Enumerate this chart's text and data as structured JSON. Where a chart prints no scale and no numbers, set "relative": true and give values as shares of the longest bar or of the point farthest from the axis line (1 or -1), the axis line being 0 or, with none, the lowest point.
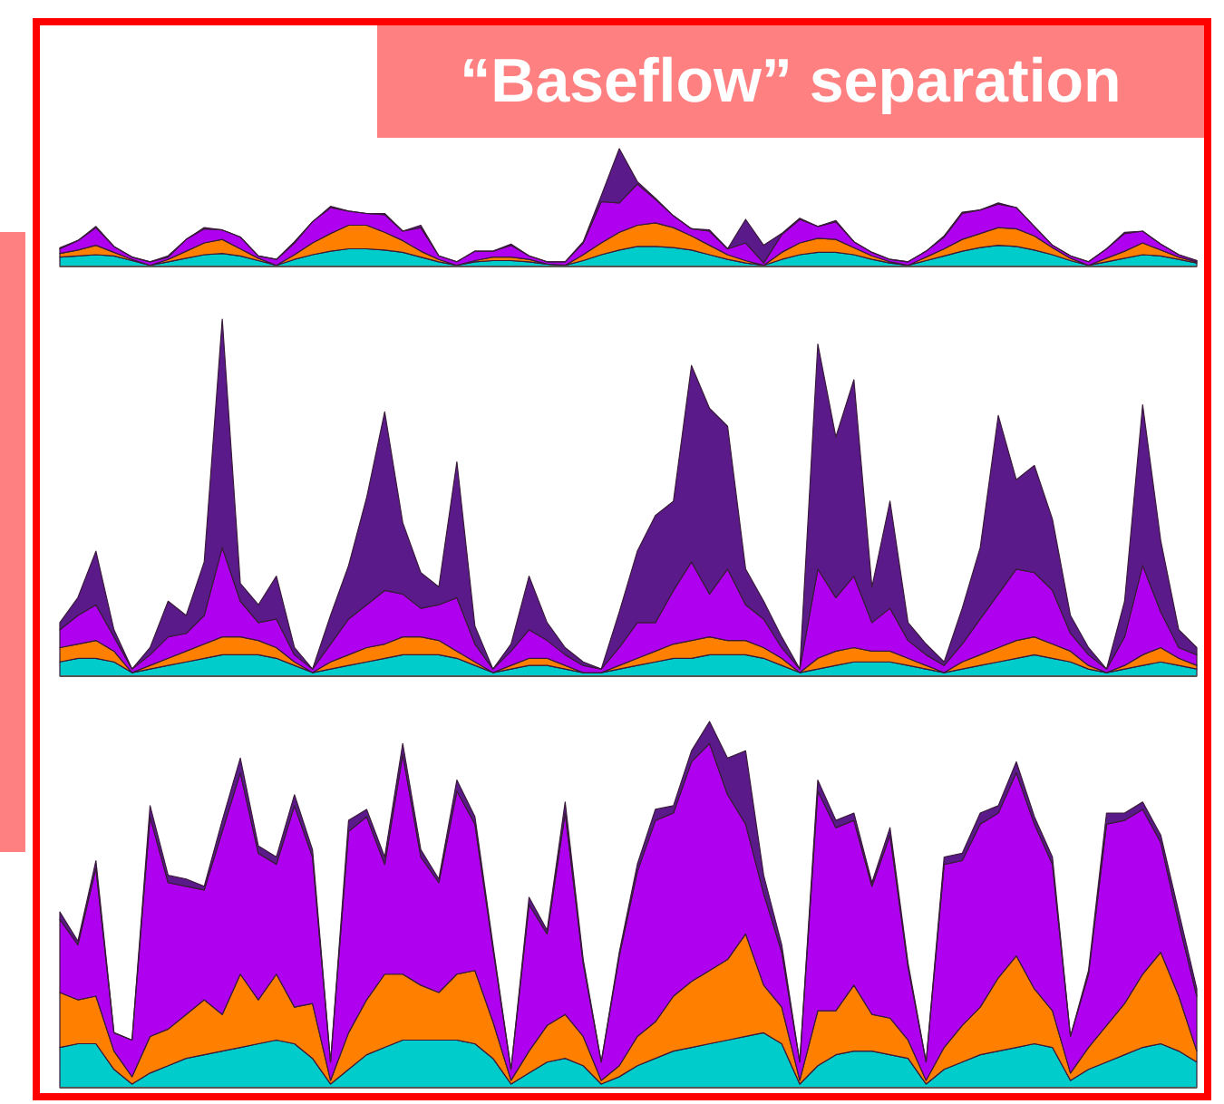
{
  "chart_data": [
    {
      "type": "area",
      "title": "“Baseflow” separation",
      "relative": true,
      "stacked": true,
      "categories": [
        null,
        null,
        null,
        null,
        null,
        null,
        null,
        null,
        null,
        null,
        null,
        null,
        null,
        null,
        null,
        null,
        null,
        null,
        null,
        null,
        null,
        null,
        null,
        null,
        null,
        null,
        null,
        null,
        null,
        null,
        null,
        null,
        null,
        null,
        null,
        null,
        null,
        null,
        null,
        null,
        null,
        null,
        null,
        null,
        null,
        null,
        null,
        null,
        null,
        null,
        null,
        null,
        null,
        null,
        null,
        null,
        null,
        null,
        null,
        null,
        null,
        null,
        null,
        null
      ],
      "series": [
        {
          "color": "#00cccc",
          "values": [
            0.08,
            0.09,
            0.1,
            0.09,
            0.05,
            0.01,
            0.04,
            0.07,
            0.1,
            0.11,
            0.09,
            0.05,
            0.01,
            0.06,
            0.1,
            0.13,
            0.15,
            0.15,
            0.14,
            0.12,
            0.08,
            0.04,
            0.01,
            0.04,
            0.05,
            0.05,
            0.04,
            0.02,
            0.01,
            0.05,
            0.1,
            0.14,
            0.17,
            0.17,
            0.16,
            0.14,
            0.1,
            0.06,
            0.03,
            0.01,
            0.06,
            0.1,
            0.12,
            0.12,
            0.1,
            0.06,
            0.03,
            0.01,
            0.05,
            0.09,
            0.13,
            0.16,
            0.18,
            0.17,
            0.14,
            0.1,
            0.05,
            0.01,
            0.04,
            0.07,
            0.1,
            0.09,
            0.06,
            0.03
          ]
        },
        {
          "color": "#ff8000",
          "values": [
            0.03,
            0.05,
            0.08,
            0.03,
            0.01,
            0,
            0.02,
            0.06,
            0.1,
            0.12,
            0.06,
            0.02,
            0,
            0.04,
            0.1,
            0.15,
            0.2,
            0.2,
            0.15,
            0.1,
            0.05,
            0.02,
            0,
            0.01,
            0.03,
            0.03,
            0.02,
            0,
            0,
            0.05,
            0.1,
            0.15,
            0.18,
            0.2,
            0.17,
            0.12,
            0.08,
            0.04,
            0.02,
            0,
            0.06,
            0.1,
            0.12,
            0.11,
            0.06,
            0.03,
            0.01,
            0,
            0.03,
            0.06,
            0.1,
            0.12,
            0.15,
            0.15,
            0.12,
            0.06,
            0.02,
            0,
            0.03,
            0.06,
            0.1,
            0.05,
            0.02,
            0.01
          ]
        },
        {
          "color": "#b000f0",
          "values": [
            0.04,
            0.08,
            0.15,
            0.05,
            0.02,
            0.03,
            0.02,
            0.1,
            0.12,
            0.08,
            0.1,
            0.02,
            0.05,
            0.1,
            0.18,
            0.22,
            0.12,
            0.1,
            0.15,
            0.08,
            0.2,
            0.03,
            0.03,
            0.08,
            0.05,
            0.1,
            0.03,
            0.02,
            0.03,
            0.1,
            0.35,
            0.25,
            0.35,
            0.2,
            0.1,
            0.06,
            0.12,
            0.05,
            0.15,
            0.02,
            0.15,
            0.2,
            0.1,
            0.15,
            0.05,
            0.03,
            0.02,
            0.03,
            0.05,
            0.1,
            0.22,
            0.2,
            0.2,
            0.18,
            0.08,
            0.02,
            0.02,
            0.03,
            0.08,
            0.15,
            0.1,
            0.05,
            0.02,
            0.01
          ]
        },
        {
          "color": "#5a1a8a",
          "values": [
            0.01,
            0,
            0.01,
            0,
            0,
            0,
            0.01,
            0,
            0.01,
            0,
            0,
            0,
            0,
            0.01,
            0,
            0.01,
            0,
            0,
            0.01,
            0,
            0.02,
            0,
            0,
            0,
            0,
            0.01,
            0,
            0,
            0,
            0.01,
            0.05,
            0.46,
            0.02,
            0.01,
            0,
            0,
            0.01,
            0,
            0.2,
            0.15,
            0.01,
            0.01,
            0,
            0.01,
            0,
            0,
            0,
            0,
            0,
            0.01,
            0.01,
            0,
            0.01,
            0,
            0,
            0,
            0,
            0,
            0,
            0.01,
            0,
            0,
            0,
            0
          ]
        }
      ]
    },
    {
      "type": "area",
      "relative": true,
      "stacked": true,
      "categories": [
        null,
        null,
        null,
        null,
        null,
        null,
        null,
        null,
        null,
        null,
        null,
        null,
        null,
        null,
        null,
        null,
        null,
        null,
        null,
        null,
        null,
        null,
        null,
        null,
        null,
        null,
        null,
        null,
        null,
        null,
        null,
        null,
        null,
        null,
        null,
        null,
        null,
        null,
        null,
        null,
        null,
        null,
        null,
        null,
        null,
        null,
        null,
        null,
        null,
        null,
        null,
        null,
        null,
        null,
        null,
        null,
        null,
        null,
        null,
        null,
        null,
        null,
        null,
        null
      ],
      "series": [
        {
          "color": "#00cccc",
          "values": [
            0.04,
            0.05,
            0.05,
            0.04,
            0.01,
            0.02,
            0.03,
            0.04,
            0.05,
            0.06,
            0.06,
            0.06,
            0.05,
            0.03,
            0.01,
            0.02,
            0.03,
            0.04,
            0.05,
            0.06,
            0.06,
            0.06,
            0.05,
            0.03,
            0.01,
            0.02,
            0.03,
            0.03,
            0.02,
            0.01,
            0.01,
            0.02,
            0.03,
            0.04,
            0.05,
            0.05,
            0.06,
            0.06,
            0.06,
            0.05,
            0.03,
            0.01,
            0.02,
            0.03,
            0.04,
            0.04,
            0.04,
            0.03,
            0.02,
            0.01,
            0.02,
            0.03,
            0.04,
            0.05,
            0.06,
            0.05,
            0.04,
            0.02,
            0.01,
            0.02,
            0.03,
            0.04,
            0.03,
            0.02
          ]
        },
        {
          "color": "#ff8000",
          "values": [
            0.04,
            0.04,
            0.05,
            0.03,
            0,
            0.01,
            0.02,
            0.03,
            0.04,
            0.05,
            0.05,
            0.04,
            0.03,
            0.01,
            0,
            0.02,
            0.03,
            0.04,
            0.04,
            0.05,
            0.05,
            0.04,
            0.02,
            0.01,
            0,
            0.01,
            0.02,
            0.02,
            0.01,
            0,
            0,
            0.01,
            0.02,
            0.03,
            0.04,
            0.05,
            0.05,
            0.04,
            0.04,
            0.03,
            0.02,
            0,
            0.03,
            0.04,
            0.04,
            0.03,
            0.03,
            0.02,
            0.01,
            0,
            0.02,
            0.03,
            0.04,
            0.05,
            0.05,
            0.04,
            0.03,
            0.01,
            0,
            0.01,
            0.03,
            0.04,
            0.02,
            0.01
          ]
        },
        {
          "color": "#b000f0",
          "values": [
            0.05,
            0.08,
            0.1,
            0.04,
            0.01,
            0.03,
            0.06,
            0.05,
            0.08,
            0.25,
            0.1,
            0.05,
            0.08,
            0.02,
            0.01,
            0.05,
            0.1,
            0.12,
            0.15,
            0.12,
            0.08,
            0.1,
            0.15,
            0.05,
            0.01,
            0.04,
            0.08,
            0.05,
            0.03,
            0.02,
            0.01,
            0.05,
            0.1,
            0.08,
            0.15,
            0.22,
            0.12,
            0.2,
            0.1,
            0.08,
            0.03,
            0.01,
            0.25,
            0.15,
            0.2,
            0.08,
            0.12,
            0.05,
            0.03,
            0.02,
            0.05,
            0.1,
            0.15,
            0.2,
            0.18,
            0.15,
            0.05,
            0.03,
            0.01,
            0.08,
            0.25,
            0.1,
            0.03,
            0.03
          ]
        },
        {
          "color": "#5a1a8a",
          "values": [
            0.02,
            0.05,
            0.15,
            0.02,
            0,
            0.02,
            0.1,
            0.05,
            0.15,
            0.64,
            0.05,
            0.05,
            0.12,
            0.02,
            0,
            0.08,
            0.15,
            0.3,
            0.5,
            0.2,
            0.1,
            0.05,
            0.38,
            0.05,
            0,
            0.02,
            0.15,
            0.05,
            0.02,
            0.01,
            0,
            0.1,
            0.2,
            0.3,
            0.25,
            0.55,
            0.52,
            0.4,
            0.1,
            0.05,
            0.03,
            0,
            0.63,
            0.45,
            0.55,
            0.1,
            0.3,
            0.05,
            0.03,
            0.01,
            0.1,
            0.2,
            0.5,
            0.25,
            0.3,
            0.2,
            0.05,
            0.02,
            0,
            0.1,
            0.45,
            0.2,
            0.05,
            0.02
          ]
        }
      ]
    },
    {
      "type": "area",
      "relative": true,
      "stacked": true,
      "categories": [
        null,
        null,
        null,
        null,
        null,
        null,
        null,
        null,
        null,
        null,
        null,
        null,
        null,
        null,
        null,
        null,
        null,
        null,
        null,
        null,
        null,
        null,
        null,
        null,
        null,
        null,
        null,
        null,
        null,
        null,
        null,
        null,
        null,
        null,
        null,
        null,
        null,
        null,
        null,
        null,
        null,
        null,
        null,
        null,
        null,
        null,
        null,
        null,
        null,
        null,
        null,
        null,
        null,
        null,
        null,
        null,
        null,
        null,
        null,
        null,
        null,
        null,
        null,
        null
      ],
      "series": [
        {
          "color": "#00cccc",
          "values": [
            0.11,
            0.12,
            0.12,
            0.05,
            0.01,
            0.04,
            0.06,
            0.08,
            0.09,
            0.1,
            0.11,
            0.12,
            0.13,
            0.12,
            0.08,
            0.01,
            0.05,
            0.09,
            0.11,
            0.13,
            0.13,
            0.13,
            0.13,
            0.12,
            0.08,
            0.01,
            0.04,
            0.07,
            0.08,
            0.06,
            0.01,
            0.03,
            0.06,
            0.08,
            0.1,
            0.11,
            0.12,
            0.13,
            0.14,
            0.15,
            0.12,
            0.01,
            0.06,
            0.09,
            0.1,
            0.1,
            0.09,
            0.08,
            0.01,
            0.05,
            0.07,
            0.09,
            0.1,
            0.11,
            0.12,
            0.11,
            0.02,
            0.05,
            0.07,
            0.09,
            0.11,
            0.12,
            0.1,
            0.07
          ]
        },
        {
          "color": "#ff8000",
          "values": [
            0.15,
            0.12,
            0.13,
            0.05,
            0.02,
            0.1,
            0.1,
            0.12,
            0.15,
            0.1,
            0.2,
            0.12,
            0.18,
            0.1,
            0.15,
            0.01,
            0.1,
            0.15,
            0.2,
            0.18,
            0.15,
            0.13,
            0.18,
            0.2,
            0.1,
            0.01,
            0.06,
            0.1,
            0.12,
            0.08,
            0.01,
            0.03,
            0.08,
            0.1,
            0.15,
            0.18,
            0.2,
            0.22,
            0.28,
            0.13,
            0.1,
            0.01,
            0.15,
            0.12,
            0.18,
            0.1,
            0.1,
            0.05,
            0.01,
            0.06,
            0.1,
            0.13,
            0.2,
            0.25,
            0.15,
            0.1,
            0.02,
            0.06,
            0.1,
            0.14,
            0.2,
            0.25,
            0.15,
            0.03
          ]
        },
        {
          "color": "#b000f0",
          "values": [
            0.2,
            0.15,
            0.35,
            0.05,
            0.1,
            0.6,
            0.4,
            0.35,
            0.3,
            0.5,
            0.55,
            0.4,
            0.3,
            0.55,
            0.4,
            0.05,
            0.55,
            0.5,
            0.3,
            0.6,
            0.35,
            0.3,
            0.5,
            0.4,
            0.2,
            0.03,
            0.4,
            0.25,
            0.55,
            0.2,
            0.05,
            0.3,
            0.45,
            0.55,
            0.5,
            0.6,
            0.62,
            0.45,
            0.3,
            0.25,
            0.15,
            0.05,
            0.6,
            0.5,
            0.45,
            0.35,
            0.5,
            0.2,
            0.05,
            0.5,
            0.45,
            0.5,
            0.45,
            0.5,
            0.45,
            0.4,
            0.1,
            0.2,
            0.55,
            0.5,
            0.45,
            0.3,
            0.2,
            0.15
          ]
        },
        {
          "color": "#5a1a8a",
          "values": [
            0.02,
            0.01,
            0.02,
            0,
            0,
            0.03,
            0.02,
            0.02,
            0.01,
            0.03,
            0.04,
            0.02,
            0.02,
            0.03,
            0.02,
            0,
            0.03,
            0.02,
            0.02,
            0.03,
            0.02,
            0.01,
            0.03,
            0.02,
            0.01,
            0,
            0.02,
            0.01,
            0.03,
            0.01,
            0,
            0.01,
            0.02,
            0.03,
            0.02,
            0.03,
            0.06,
            0.1,
            0.2,
            0.05,
            0.02,
            0,
            0.03,
            0.02,
            0.02,
            0.01,
            0.02,
            0.01,
            0,
            0.02,
            0.02,
            0.03,
            0.02,
            0.03,
            0.02,
            0.02,
            0,
            0.01,
            0.03,
            0.02,
            0.02,
            0.02,
            0.03,
            0.02
          ]
        }
      ]
    }
  ]
}
